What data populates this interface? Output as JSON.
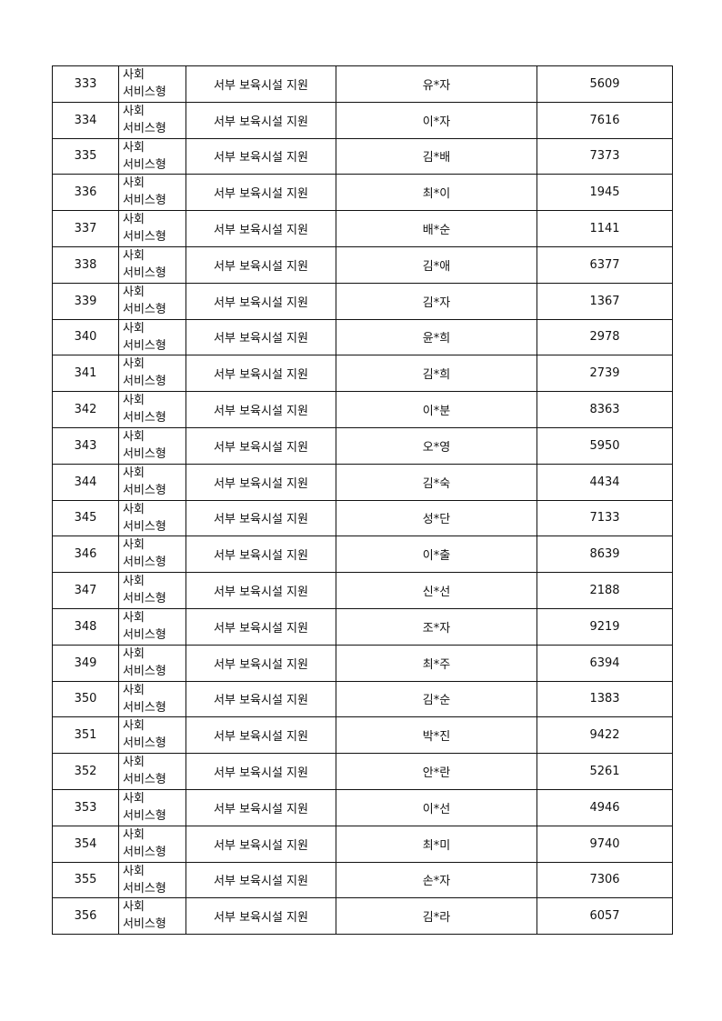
{
  "table": {
    "rows": [
      {
        "no": "333",
        "type_line1": "사회",
        "type_line2": "서비스형",
        "program": "서부 보육시설 지원",
        "name": "유*자",
        "amount": "5609"
      },
      {
        "no": "334",
        "type_line1": "사회",
        "type_line2": "서비스형",
        "program": "서부 보육시설 지원",
        "name": "이*자",
        "amount": "7616"
      },
      {
        "no": "335",
        "type_line1": "사회",
        "type_line2": "서비스형",
        "program": "서부 보육시설 지원",
        "name": "김*배",
        "amount": "7373"
      },
      {
        "no": "336",
        "type_line1": "사회",
        "type_line2": "서비스형",
        "program": "서부 보육시설 지원",
        "name": "최*이",
        "amount": "1945"
      },
      {
        "no": "337",
        "type_line1": "사회",
        "type_line2": "서비스형",
        "program": "서부 보육시설 지원",
        "name": "배*순",
        "amount": "1141"
      },
      {
        "no": "338",
        "type_line1": "사회",
        "type_line2": "서비스형",
        "program": "서부 보육시설 지원",
        "name": "김*애",
        "amount": "6377"
      },
      {
        "no": "339",
        "type_line1": "사회",
        "type_line2": "서비스형",
        "program": "서부 보육시설 지원",
        "name": "김*자",
        "amount": "1367"
      },
      {
        "no": "340",
        "type_line1": "사회",
        "type_line2": "서비스형",
        "program": "서부 보육시설 지원",
        "name": "윤*희",
        "amount": "2978"
      },
      {
        "no": "341",
        "type_line1": "사회",
        "type_line2": "서비스형",
        "program": "서부 보육시설 지원",
        "name": "김*희",
        "amount": "2739"
      },
      {
        "no": "342",
        "type_line1": "사회",
        "type_line2": "서비스형",
        "program": "서부 보육시설 지원",
        "name": "이*분",
        "amount": "8363"
      },
      {
        "no": "343",
        "type_line1": "사회",
        "type_line2": "서비스형",
        "program": "서부 보육시설 지원",
        "name": "오*영",
        "amount": "5950"
      },
      {
        "no": "344",
        "type_line1": "사회",
        "type_line2": "서비스형",
        "program": "서부 보육시설 지원",
        "name": "김*숙",
        "amount": "4434"
      },
      {
        "no": "345",
        "type_line1": "사회",
        "type_line2": "서비스형",
        "program": "서부 보육시설 지원",
        "name": "성*단",
        "amount": "7133"
      },
      {
        "no": "346",
        "type_line1": "사회",
        "type_line2": "서비스형",
        "program": "서부 보육시설 지원",
        "name": "이*출",
        "amount": "8639"
      },
      {
        "no": "347",
        "type_line1": "사회",
        "type_line2": "서비스형",
        "program": "서부 보육시설 지원",
        "name": "신*선",
        "amount": "2188"
      },
      {
        "no": "348",
        "type_line1": "사회",
        "type_line2": "서비스형",
        "program": "서부 보육시설 지원",
        "name": "조*자",
        "amount": "9219"
      },
      {
        "no": "349",
        "type_line1": "사회",
        "type_line2": "서비스형",
        "program": "서부 보육시설 지원",
        "name": "최*주",
        "amount": "6394"
      },
      {
        "no": "350",
        "type_line1": "사회",
        "type_line2": "서비스형",
        "program": "서부 보육시설 지원",
        "name": "김*순",
        "amount": "1383"
      },
      {
        "no": "351",
        "type_line1": "사회",
        "type_line2": "서비스형",
        "program": "서부 보육시설 지원",
        "name": "박*진",
        "amount": "9422"
      },
      {
        "no": "352",
        "type_line1": "사회",
        "type_line2": "서비스형",
        "program": "서부 보육시설 지원",
        "name": "안*란",
        "amount": "5261"
      },
      {
        "no": "353",
        "type_line1": "사회",
        "type_line2": "서비스형",
        "program": "서부 보육시설 지원",
        "name": "이*선",
        "amount": "4946"
      },
      {
        "no": "354",
        "type_line1": "사회",
        "type_line2": "서비스형",
        "program": "서부 보육시설 지원",
        "name": "최*미",
        "amount": "9740"
      },
      {
        "no": "355",
        "type_line1": "사회",
        "type_line2": "서비스형",
        "program": "서부 보육시설 지원",
        "name": "손*자",
        "amount": "7306"
      },
      {
        "no": "356",
        "type_line1": "사회",
        "type_line2": "서비스형",
        "program": "서부 보육시설 지원",
        "name": "김*라",
        "amount": "6057"
      }
    ]
  }
}
